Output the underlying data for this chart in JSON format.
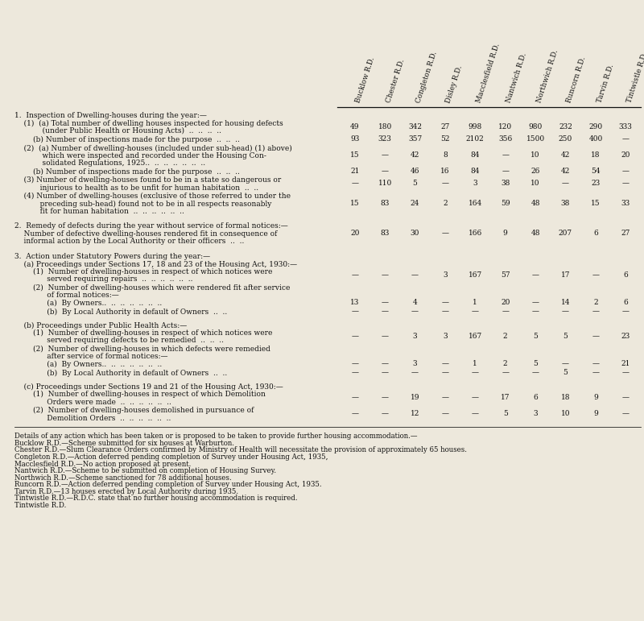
{
  "bg_color": "#ede8dc",
  "text_color": "#111111",
  "header_cols": [
    "Bucklow R.D.",
    "Chester R.D.",
    "Congleton R.D.",
    "Disley R.D.",
    "Macclesfield R.D.",
    "Nantwich R.D.",
    "Northwich R.D.",
    "Runcorn R.D.",
    "Tarvin R.D.",
    "Tintwistle R.D."
  ],
  "rows": [
    {
      "label": "1.  Inspection of Dwelling-houses during the year:—",
      "values": [],
      "section_header": true,
      "space_before": 0
    },
    {
      "label": "    (1)  (a) Total number of dwelling houses inspected for housing defects\n            (under Public Health or Housing Acts)  ..  ..  ..  ..",
      "values": [
        "49",
        "180",
        "342",
        "27",
        "998",
        "120",
        "980",
        "232",
        "290",
        "333"
      ],
      "section_header": false,
      "space_before": 0
    },
    {
      "label": "        (b) Number of inspections made for the purpose  ..  ..  ..",
      "values": [
        "93",
        "323",
        "357",
        "52",
        "2102",
        "356",
        "1500",
        "250",
        "400",
        "—"
      ],
      "section_header": false,
      "space_before": 0
    },
    {
      "label": "    (2)  (a) Number of dwelling-houses (included under sub-head) (1) above)\n            which were inspected and recorded under the Housing Con-\n            solidated Regulations, 1925..  ..  ..  ..  ..  ..  ..",
      "values": [
        "15",
        "—",
        "42",
        "8",
        "84",
        "—",
        "10",
        "42",
        "18",
        "20"
      ],
      "section_header": false,
      "space_before": 0
    },
    {
      "label": "        (b) Number of inspections made for the purpose  ..  ..  ..",
      "values": [
        "21",
        "—",
        "46",
        "16",
        "84",
        "—",
        "26",
        "42",
        "54",
        "—"
      ],
      "section_header": false,
      "space_before": 0
    },
    {
      "label": "    (3) Number of dwelling-houses found to be in a state so dangerous or\n           injurious to health as to be unfit for human habitation  ..  ..",
      "values": [
        "—",
        "110",
        "5",
        "—",
        "3",
        "38",
        "10",
        "—",
        "23",
        "—"
      ],
      "section_header": false,
      "space_before": 0
    },
    {
      "label": "    (4) Number of dwelling-houses (exclusive of those referred to under the\n           preceding sub-head) found not to be in all respects reasonably\n           fit for human habitation  ..  ..  ..  ..  ..  ..",
      "values": [
        "15",
        "83",
        "24",
        "2",
        "164",
        "59",
        "48",
        "38",
        "15",
        "33"
      ],
      "section_header": false,
      "space_before": 0
    },
    {
      "label": "2.  Remedy of defects during the year without service of formal notices:—\n    Number of defective dwelling-houses rendered fit in consequence of\n    informal action by the Local Authority or their officers  ..  ..",
      "values": [
        "20",
        "83",
        "30",
        "—",
        "166",
        "9",
        "48",
        "207",
        "6",
        "27"
      ],
      "section_header": false,
      "space_before": 8
    },
    {
      "label": "3.  Action under Statutory Powers during the year:—",
      "values": [],
      "section_header": true,
      "space_before": 8
    },
    {
      "label": "    (a) Proceedings under Sections 17, 18 and 23 of the Housing Act, 1930:—",
      "values": [],
      "section_header": true,
      "space_before": 0
    },
    {
      "label": "        (1)  Number of dwelling-houses in respect of which notices were\n              served requiring repairs  ..  ..  ..  ..  ..  ..",
      "values": [
        "—",
        "—",
        "—",
        "3",
        "167",
        "57",
        "—",
        "17",
        "—",
        "6"
      ],
      "section_header": false,
      "space_before": 0
    },
    {
      "label": "        (2)  Number of dwelling-houses which were rendered fit after service\n              of formal notices:—",
      "values": [],
      "section_header": true,
      "space_before": 0
    },
    {
      "label": "              (a)  By Owners..  ..  ..  ..  ..  ..  ..",
      "values": [
        "13",
        "—",
        "4",
        "—",
        "1",
        "20",
        "—",
        "14",
        "2",
        "6"
      ],
      "section_header": false,
      "space_before": 0
    },
    {
      "label": "              (b)  By Local Authority in default of Owners  ..  ..",
      "values": [
        "—",
        "—",
        "—",
        "—",
        "—",
        "—",
        "—",
        "—",
        "—",
        "—"
      ],
      "section_header": false,
      "space_before": 0
    },
    {
      "label": "    (b) Proceedings under Public Health Acts:—",
      "values": [],
      "section_header": true,
      "space_before": 6
    },
    {
      "label": "        (1)  Number of dwelling-houses in respect of which notices were\n              served requiring defects to be remedied  ..  ..  ..",
      "values": [
        "—",
        "—",
        "3",
        "3",
        "167",
        "2",
        "5",
        "5",
        "—",
        "23"
      ],
      "section_header": false,
      "space_before": 0
    },
    {
      "label": "        (2)  Number of dwelling-houses in which defects were remedied\n              after service of formal notices:—",
      "values": [],
      "section_header": true,
      "space_before": 0
    },
    {
      "label": "              (a)  By Owners..  ..  ..  ..  ..  ..  ..",
      "values": [
        "—",
        "—",
        "3",
        "—",
        "1",
        "2",
        "5",
        "—",
        "—",
        "21"
      ],
      "section_header": false,
      "space_before": 0
    },
    {
      "label": "              (b)  By Local Authority in default of Owners  ..  ..",
      "values": [
        "—",
        "—",
        "—",
        "—",
        "—",
        "—",
        "—",
        "5",
        "—",
        "—"
      ],
      "section_header": false,
      "space_before": 0
    },
    {
      "label": "    (c) Proceedings under Sections 19 and 21 of the Housing Act, 1930:—",
      "values": [],
      "section_header": true,
      "space_before": 6
    },
    {
      "label": "        (1)  Number of dwelling-houses in respect of which Demolition\n              Orders were made  ..  ..  ..  ..  ..  ..",
      "values": [
        "—",
        "—",
        "19",
        "—",
        "—",
        "17",
        "6",
        "18",
        "9",
        "—"
      ],
      "section_header": false,
      "space_before": 0
    },
    {
      "label": "        (2)  Number of dwelling-houses demolished in pursuance of\n              Demolition Orders  ..  ..  ..  ..  ..  ..",
      "values": [
        "—",
        "—",
        "12",
        "—",
        "—",
        "5",
        "3",
        "10",
        "9",
        "—"
      ],
      "section_header": false,
      "space_before": 0
    }
  ],
  "footer_lines": [
    "Details of any action which has been taken or is proposed to be taken to provide further housing accommodation.—",
    "Bucklow R.D.—Scheme submitted for six houses at Warburton.",
    "Chester R.D.—Slum Clearance Orders confirmed by Ministry of Health will necessitate the provision of approximately 65 houses.",
    "Congleton R.D.—Action deferred pending completion of Survey under Housing Act, 1935,",
    "Macclesfield R.D.—No action proposed at present.",
    "Nantwich R.D.—Scheme to be submitted on completion of Housing Survey.",
    "Northwich R.D.—Scheme sanctioned for 78 additional houses.",
    "Runcorn R.D.—Action deferred pending completion of Survey under Housing Act, 1935.",
    "Tarvin R.D.—13 houses erected by Local Authority during 1935.",
    "Tintwistle R.D.—R.D.C. state that no further housing accommodation is required.",
    "Tintwistle R.D."
  ]
}
